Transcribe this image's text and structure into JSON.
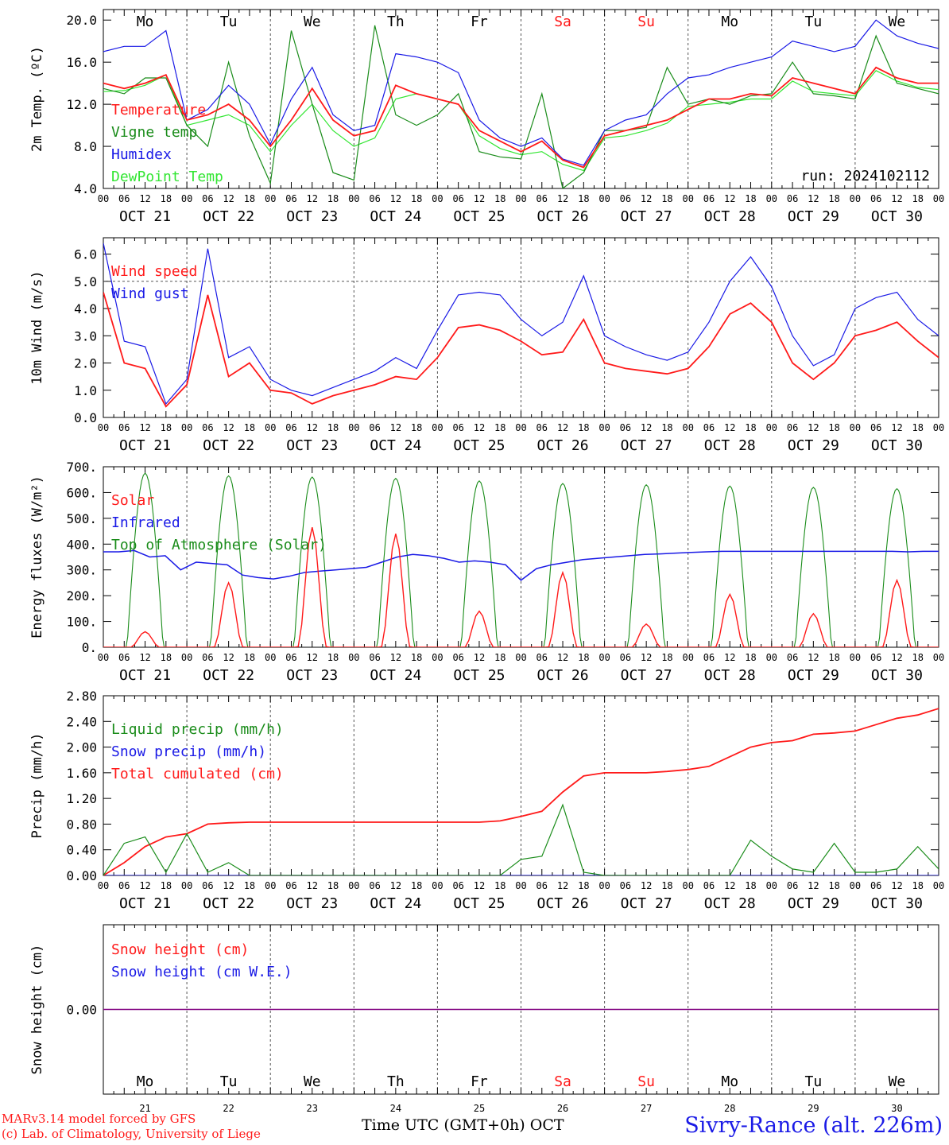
{
  "footer": {
    "credit_line1": "MARv3.14 model forced by GFS",
    "credit_line2": "(c) Lab. of Climatology, University of Liege",
    "xlabel": "Time UTC (GMT+0h)",
    "month": "OCT",
    "location": "Sivry-Rance (alt. 226m)"
  },
  "colors": {
    "red": "#ff1a1a",
    "green": "#1a8c1a",
    "blue": "#1a1ae6",
    "lime": "#33e633",
    "purple": "#800080"
  },
  "days": {
    "weekday_labels": [
      "Mo",
      "Tu",
      "We",
      "Th",
      "Fr",
      "Sa",
      "Su",
      "Mo",
      "Tu",
      "We"
    ],
    "weekend_flags": [
      false,
      false,
      false,
      false,
      false,
      true,
      true,
      false,
      false,
      false
    ],
    "date_labels": [
      "OCT 21",
      "OCT 22",
      "OCT 23",
      "OCT 24",
      "OCT 25",
      "OCT 26",
      "OCT 27",
      "OCT 28",
      "OCT 29",
      "OCT 30"
    ],
    "day_numbers": [
      "21",
      "22",
      "23",
      "24",
      "25",
      "26",
      "27",
      "28",
      "29",
      "30"
    ],
    "hour_labels": [
      "00",
      "06",
      "12",
      "18"
    ]
  },
  "chart_data": [
    {
      "type": "line",
      "ylabel": "2m Temp. (ºC)",
      "ylim": [
        4,
        21
      ],
      "yticks": [
        "4.0",
        "8.0",
        "12.0",
        "16.0",
        "20.0"
      ],
      "ytick_values": [
        4,
        8,
        12,
        16,
        20
      ],
      "run_label": "run: 2024102112",
      "x_unit": "hours since 2024-10-21 00 UTC",
      "x": [
        0,
        6,
        12,
        18,
        24,
        30,
        36,
        42,
        48,
        54,
        60,
        66,
        72,
        78,
        84,
        90,
        96,
        102,
        108,
        114,
        120,
        126,
        132,
        138,
        144,
        150,
        156,
        162,
        168,
        174,
        180,
        186,
        192,
        198,
        204,
        210,
        216,
        222,
        228,
        234,
        240
      ],
      "series": [
        {
          "name": "Temperature",
          "color": "#ff1a1a",
          "values": [
            14.0,
            13.5,
            14.0,
            14.8,
            10.5,
            11.0,
            12.0,
            10.5,
            8.0,
            10.5,
            13.5,
            10.5,
            9.0,
            9.5,
            13.8,
            13.0,
            12.5,
            12.0,
            9.5,
            8.5,
            7.5,
            8.5,
            6.7,
            6.0,
            9.0,
            9.5,
            10.0,
            10.5,
            11.5,
            12.5,
            12.5,
            13.0,
            12.8,
            14.5,
            14.0,
            13.5,
            13.0,
            15.5,
            14.5,
            14.0,
            14.0
          ]
        },
        {
          "name": "Vigne temp",
          "color": "#1a8c1a",
          "values": [
            13.5,
            13.0,
            14.5,
            14.5,
            10.0,
            8.0,
            16.0,
            9.0,
            4.5,
            19.0,
            12.0,
            5.5,
            4.8,
            19.5,
            11.0,
            10.0,
            11.0,
            13.0,
            7.5,
            7.0,
            6.8,
            13.0,
            4.0,
            5.5,
            9.5,
            9.5,
            9.8,
            15.5,
            12.0,
            12.5,
            12.0,
            12.8,
            13.0,
            16.0,
            13.0,
            12.8,
            12.5,
            18.5,
            14.0,
            13.5,
            13.0
          ]
        },
        {
          "name": "Humidex",
          "color": "#1a1ae6",
          "values": [
            17.0,
            17.5,
            17.5,
            19.0,
            10.5,
            11.5,
            13.8,
            12.0,
            8.2,
            12.5,
            15.5,
            11.0,
            9.5,
            10.0,
            16.8,
            16.5,
            16.0,
            15.0,
            10.5,
            8.8,
            8.0,
            8.8,
            6.8,
            6.2,
            9.5,
            10.5,
            11.0,
            13.0,
            14.5,
            14.8,
            15.5,
            16.0,
            16.5,
            18.0,
            17.5,
            17.0,
            17.5,
            20.0,
            18.5,
            17.8,
            17.3
          ]
        },
        {
          "name": "DewPoint Temp",
          "color": "#33e633",
          "values": [
            13.2,
            13.3,
            13.8,
            14.8,
            10.0,
            10.5,
            11.0,
            10.0,
            7.5,
            10.0,
            12.0,
            9.5,
            8.0,
            8.8,
            12.5,
            13.0,
            12.5,
            12.0,
            9.0,
            7.8,
            7.2,
            7.5,
            6.3,
            5.7,
            8.8,
            9.0,
            9.5,
            10.2,
            11.8,
            12.0,
            12.2,
            12.5,
            12.5,
            14.2,
            13.2,
            13.0,
            12.8,
            15.2,
            14.2,
            13.6,
            13.4
          ]
        }
      ]
    },
    {
      "type": "line",
      "ylabel": "10m Wind (m/s)",
      "ylim": [
        0,
        6.6
      ],
      "yticks": [
        "0.0",
        "1.0",
        "2.0",
        "3.0",
        "4.0",
        "5.0",
        "6.0"
      ],
      "ytick_values": [
        0,
        1,
        2,
        3,
        4,
        5,
        6
      ],
      "reference_line": 5.0,
      "x": [
        0,
        6,
        12,
        18,
        24,
        30,
        36,
        42,
        48,
        54,
        60,
        66,
        72,
        78,
        84,
        90,
        96,
        102,
        108,
        114,
        120,
        126,
        132,
        138,
        144,
        150,
        156,
        162,
        168,
        174,
        180,
        186,
        192,
        198,
        204,
        210,
        216,
        222,
        228,
        234,
        240
      ],
      "series": [
        {
          "name": "Wind speed",
          "color": "#ff1a1a",
          "values": [
            4.6,
            2.0,
            1.8,
            0.4,
            1.2,
            4.5,
            1.5,
            2.0,
            1.0,
            0.9,
            0.5,
            0.8,
            1.0,
            1.2,
            1.5,
            1.4,
            2.2,
            3.3,
            3.4,
            3.2,
            2.8,
            2.3,
            2.4,
            3.6,
            2.0,
            1.8,
            1.7,
            1.6,
            1.8,
            2.6,
            3.8,
            4.2,
            3.5,
            2.0,
            1.4,
            2.0,
            3.0,
            3.2,
            3.5,
            2.8,
            2.2
          ]
        },
        {
          "name": "Wind gust",
          "color": "#1a1ae6",
          "values": [
            6.4,
            2.8,
            2.6,
            0.5,
            1.4,
            6.2,
            2.2,
            2.6,
            1.4,
            1.0,
            0.8,
            1.1,
            1.4,
            1.7,
            2.2,
            1.8,
            3.2,
            4.5,
            4.6,
            4.5,
            3.6,
            3.0,
            3.5,
            5.2,
            3.0,
            2.6,
            2.3,
            2.1,
            2.4,
            3.5,
            5.0,
            5.9,
            4.8,
            3.0,
            1.9,
            2.3,
            4.0,
            4.4,
            4.6,
            3.6,
            3.0
          ]
        }
      ]
    },
    {
      "type": "line",
      "ylabel": "Energy fluxes (W/m²)",
      "ylim": [
        0,
        700
      ],
      "yticks": [
        "0.",
        "100.",
        "200.",
        "300.",
        "400.",
        "500.",
        "600.",
        "700."
      ],
      "ytick_values": [
        0,
        100,
        200,
        300,
        400,
        500,
        600,
        700
      ],
      "daily": {
        "toa_peak": [
          675,
          665,
          660,
          655,
          645,
          635,
          630,
          625,
          620,
          615
        ],
        "solar_peak": [
          60,
          250,
          465,
          440,
          140,
          290,
          90,
          205,
          130,
          260
        ],
        "infrared": [
          370,
          370,
          375,
          350,
          355,
          300,
          330,
          325,
          320,
          280,
          270,
          265,
          275,
          290,
          295,
          300,
          305,
          310,
          330,
          350,
          360,
          355,
          345,
          330,
          335,
          330,
          320,
          260,
          305,
          320,
          330,
          340,
          345,
          350,
          355,
          360,
          362,
          365,
          368,
          370,
          372,
          372,
          372,
          372,
          372,
          372,
          372,
          372,
          372,
          372,
          372,
          372,
          370,
          372,
          372
        ]
      },
      "series": [
        {
          "name": "Solar",
          "color": "#ff1a1a"
        },
        {
          "name": "Infrared",
          "color": "#1a1ae6"
        },
        {
          "name": "Top of Atmosphere (Solar)",
          "color": "#1a8c1a"
        }
      ]
    },
    {
      "type": "line",
      "ylabel": "Precip (mm/h)",
      "ylim": [
        0,
        2.8
      ],
      "yticks": [
        "0.00",
        "0.40",
        "0.80",
        "1.20",
        "1.60",
        "2.00",
        "2.40",
        "2.80"
      ],
      "ytick_values": [
        0,
        0.4,
        0.8,
        1.2,
        1.6,
        2.0,
        2.4,
        2.8
      ],
      "x": [
        0,
        6,
        12,
        18,
        24,
        30,
        36,
        42,
        48,
        54,
        60,
        66,
        72,
        78,
        84,
        90,
        96,
        102,
        108,
        114,
        120,
        126,
        132,
        138,
        144,
        150,
        156,
        162,
        168,
        174,
        180,
        186,
        192,
        198,
        204,
        210,
        216,
        222,
        228,
        234,
        240
      ],
      "series": [
        {
          "name": "Liquid precip (mm/h)",
          "color": "#1a8c1a",
          "values": [
            0.0,
            0.5,
            0.6,
            0.05,
            0.65,
            0.05,
            0.2,
            0.0,
            0.0,
            0.0,
            0.0,
            0.0,
            0.0,
            0.0,
            0.0,
            0.0,
            0.0,
            0.0,
            0.0,
            0.0,
            0.25,
            0.3,
            1.1,
            0.05,
            0.0,
            0.0,
            0.0,
            0.0,
            0.0,
            0.0,
            0.0,
            0.55,
            0.3,
            0.1,
            0.05,
            0.5,
            0.05,
            0.05,
            0.1,
            0.45,
            0.1
          ]
        },
        {
          "name": "Snow precip (mm/h)",
          "color": "#1a1ae6",
          "values": [
            0,
            0,
            0,
            0,
            0,
            0,
            0,
            0,
            0,
            0,
            0,
            0,
            0,
            0,
            0,
            0,
            0,
            0,
            0,
            0,
            0,
            0,
            0,
            0,
            0,
            0,
            0,
            0,
            0,
            0,
            0,
            0,
            0,
            0,
            0,
            0,
            0,
            0,
            0,
            0,
            0
          ]
        },
        {
          "name": "Total cumulated (cm)",
          "color": "#ff1a1a",
          "values": [
            0.0,
            0.2,
            0.45,
            0.6,
            0.65,
            0.8,
            0.82,
            0.83,
            0.83,
            0.83,
            0.83,
            0.83,
            0.83,
            0.83,
            0.83,
            0.83,
            0.83,
            0.83,
            0.83,
            0.85,
            0.92,
            1.0,
            1.3,
            1.55,
            1.6,
            1.6,
            1.6,
            1.62,
            1.65,
            1.7,
            1.85,
            2.0,
            2.07,
            2.1,
            2.2,
            2.22,
            2.25,
            2.35,
            2.45,
            2.5,
            2.6
          ]
        }
      ]
    },
    {
      "type": "line",
      "ylabel": "Snow height (cm)",
      "ylim": [
        -1,
        1
      ],
      "yticks": [
        "0.00"
      ],
      "ytick_values": [
        0
      ],
      "series": [
        {
          "name": "Snow height (cm)",
          "color": "#ff1a1a",
          "values": [
            0,
            0
          ]
        },
        {
          "name": "Snow height (cm W.E.)",
          "color": "#1a1ae6",
          "values": [
            0,
            0
          ]
        }
      ]
    }
  ]
}
